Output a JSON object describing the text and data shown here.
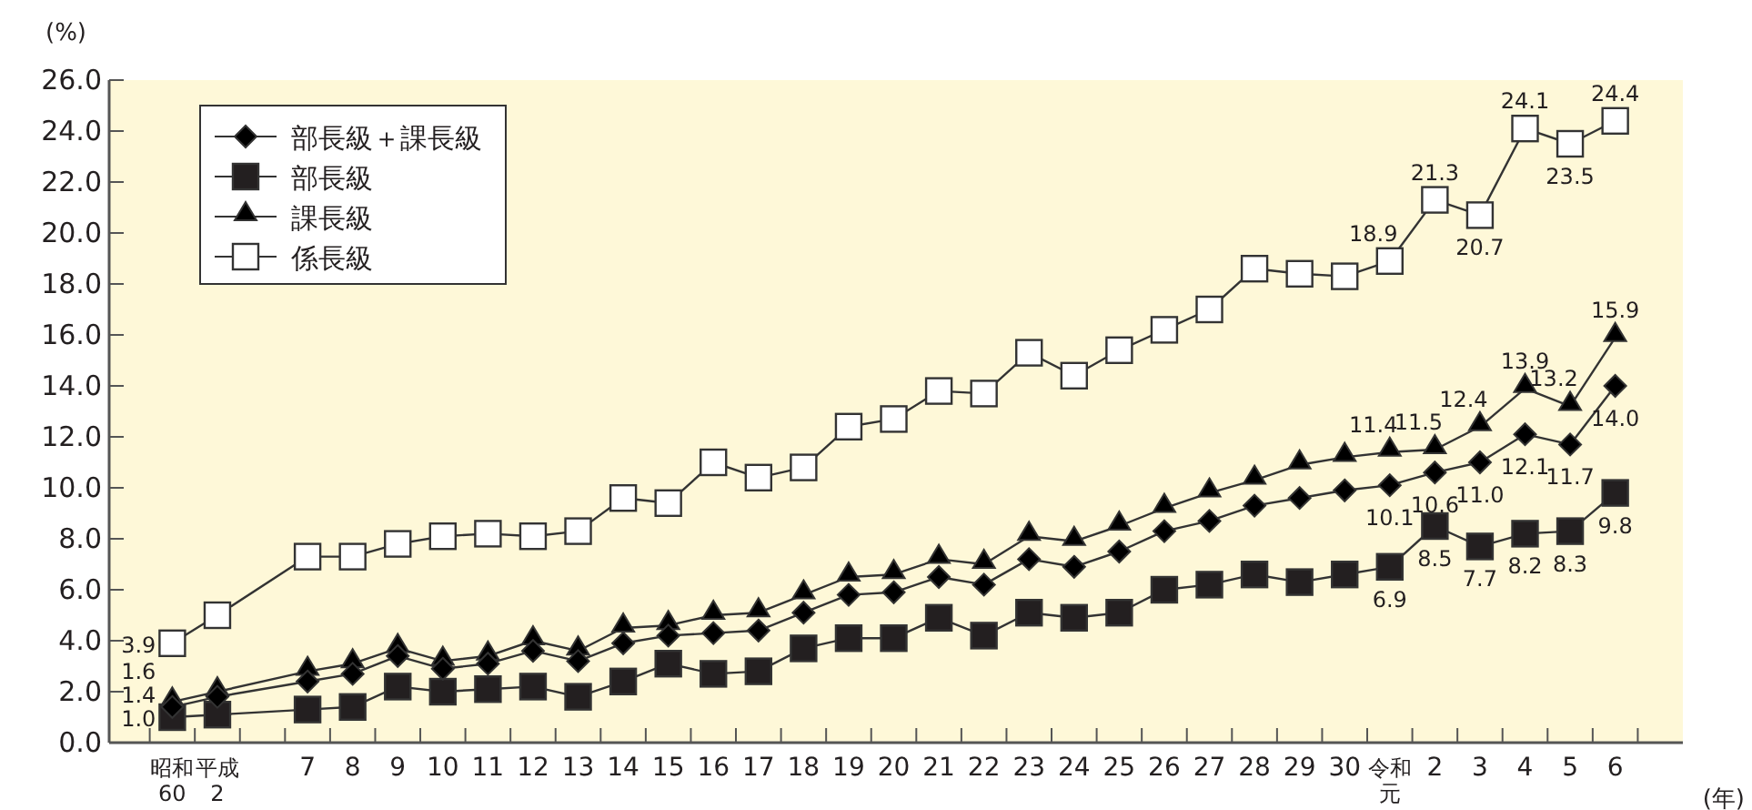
{
  "chart_data": {
    "type": "line",
    "ylabel": "(%)",
    "xlabel": "(年)",
    "categories": [
      "昭和60",
      "平成2",
      null,
      "7",
      "8",
      "9",
      "10",
      "11",
      "12",
      "13",
      "14",
      "15",
      "16",
      "17",
      "18",
      "19",
      "20",
      "21",
      "22",
      "23",
      "24",
      "25",
      "26",
      "27",
      "28",
      "29",
      "30",
      "令和元",
      "2",
      "3",
      "4",
      "5",
      "6"
    ],
    "ylim": [
      0,
      26
    ],
    "yticks": [
      {
        "value": 0,
        "label": "0.0"
      },
      {
        "value": 2,
        "label": "2.0"
      },
      {
        "value": 4,
        "label": "4.0"
      },
      {
        "value": 6,
        "label": "6.0"
      },
      {
        "value": 8,
        "label": "8.0"
      },
      {
        "value": 10,
        "label": "10.0"
      },
      {
        "value": 12,
        "label": "12.0"
      },
      {
        "value": 14,
        "label": "14.0"
      },
      {
        "value": 16,
        "label": "16.0"
      },
      {
        "value": 18,
        "label": "18.0"
      },
      {
        "value": 20,
        "label": "20.0"
      },
      {
        "value": 22,
        "label": "22.0"
      },
      {
        "value": 24,
        "label": "24.0"
      },
      {
        "value": 26,
        "label": "26.0"
      }
    ],
    "grid": false,
    "legend": "top left",
    "line_style": "solid",
    "series": [
      {
        "name": "部長級＋課長級",
        "color": "#000000",
        "marker": "diamond",
        "values": [
          1.4,
          1.8,
          null,
          2.4,
          2.7,
          3.4,
          2.9,
          3.1,
          3.6,
          3.2,
          3.9,
          4.2,
          4.3,
          4.4,
          5.1,
          5.8,
          5.9,
          6.5,
          6.2,
          7.2,
          6.9,
          7.5,
          8.3,
          8.7,
          9.3,
          9.6,
          9.9,
          10.1,
          10.6,
          11.0,
          12.1,
          11.7,
          14.0
        ],
        "value_labels": [
          "1.4",
          null,
          null,
          null,
          null,
          null,
          null,
          null,
          null,
          null,
          null,
          null,
          null,
          null,
          null,
          null,
          null,
          null,
          null,
          null,
          null,
          null,
          null,
          null,
          null,
          null,
          null,
          "10.1",
          "10.6",
          "11.0",
          "12.1",
          "11.7",
          "14.0"
        ]
      },
      {
        "name": "部長級",
        "color": "#231f20",
        "marker": "square",
        "values": [
          1.0,
          1.1,
          null,
          1.3,
          1.4,
          2.2,
          2.0,
          2.1,
          2.2,
          1.8,
          2.4,
          3.1,
          2.7,
          2.8,
          3.7,
          4.1,
          4.1,
          4.9,
          4.2,
          5.1,
          4.9,
          5.1,
          6.0,
          6.2,
          6.6,
          6.3,
          6.6,
          6.9,
          8.5,
          7.7,
          8.2,
          8.3,
          9.8
        ],
        "value_labels": [
          "1.0",
          null,
          null,
          null,
          null,
          null,
          null,
          null,
          null,
          null,
          null,
          null,
          null,
          null,
          null,
          null,
          null,
          null,
          null,
          null,
          null,
          null,
          null,
          null,
          null,
          null,
          null,
          "6.9",
          "8.5",
          "7.7",
          "8.2",
          "8.3",
          "9.8"
        ]
      },
      {
        "name": "課長級",
        "color": "#000000",
        "marker": "triangle",
        "values": [
          1.6,
          2.0,
          null,
          2.8,
          3.1,
          3.7,
          3.2,
          3.4,
          4.0,
          3.6,
          4.5,
          4.6,
          5.0,
          5.1,
          5.8,
          6.5,
          6.6,
          7.2,
          7.0,
          8.1,
          7.9,
          8.5,
          9.2,
          9.8,
          10.3,
          10.9,
          11.2,
          11.4,
          11.5,
          12.4,
          13.9,
          13.2,
          15.9
        ],
        "value_labels": [
          "1.6",
          null,
          null,
          null,
          null,
          null,
          null,
          null,
          null,
          null,
          null,
          null,
          null,
          null,
          null,
          null,
          null,
          null,
          null,
          null,
          null,
          null,
          null,
          null,
          null,
          null,
          null,
          "11.4",
          "11.5",
          "12.4",
          "13.9",
          "13.2",
          "15.9"
        ]
      },
      {
        "name": "係長級",
        "color": "#ffffff",
        "marker": "square",
        "values": [
          3.9,
          5.0,
          null,
          7.3,
          7.3,
          7.8,
          8.1,
          8.2,
          8.1,
          8.3,
          9.6,
          9.4,
          11.0,
          10.4,
          10.8,
          12.4,
          12.7,
          13.8,
          13.7,
          15.3,
          14.4,
          15.4,
          16.2,
          17.0,
          18.6,
          18.4,
          18.3,
          18.9,
          21.3,
          20.7,
          24.1,
          23.5,
          24.4
        ],
        "value_labels": [
          "3.9",
          null,
          null,
          null,
          null,
          null,
          null,
          null,
          null,
          null,
          null,
          null,
          null,
          null,
          null,
          null,
          null,
          null,
          null,
          null,
          null,
          null,
          null,
          null,
          null,
          null,
          null,
          "18.9",
          "21.3",
          "20.7",
          "24.1",
          "23.5",
          "24.4"
        ]
      }
    ]
  }
}
